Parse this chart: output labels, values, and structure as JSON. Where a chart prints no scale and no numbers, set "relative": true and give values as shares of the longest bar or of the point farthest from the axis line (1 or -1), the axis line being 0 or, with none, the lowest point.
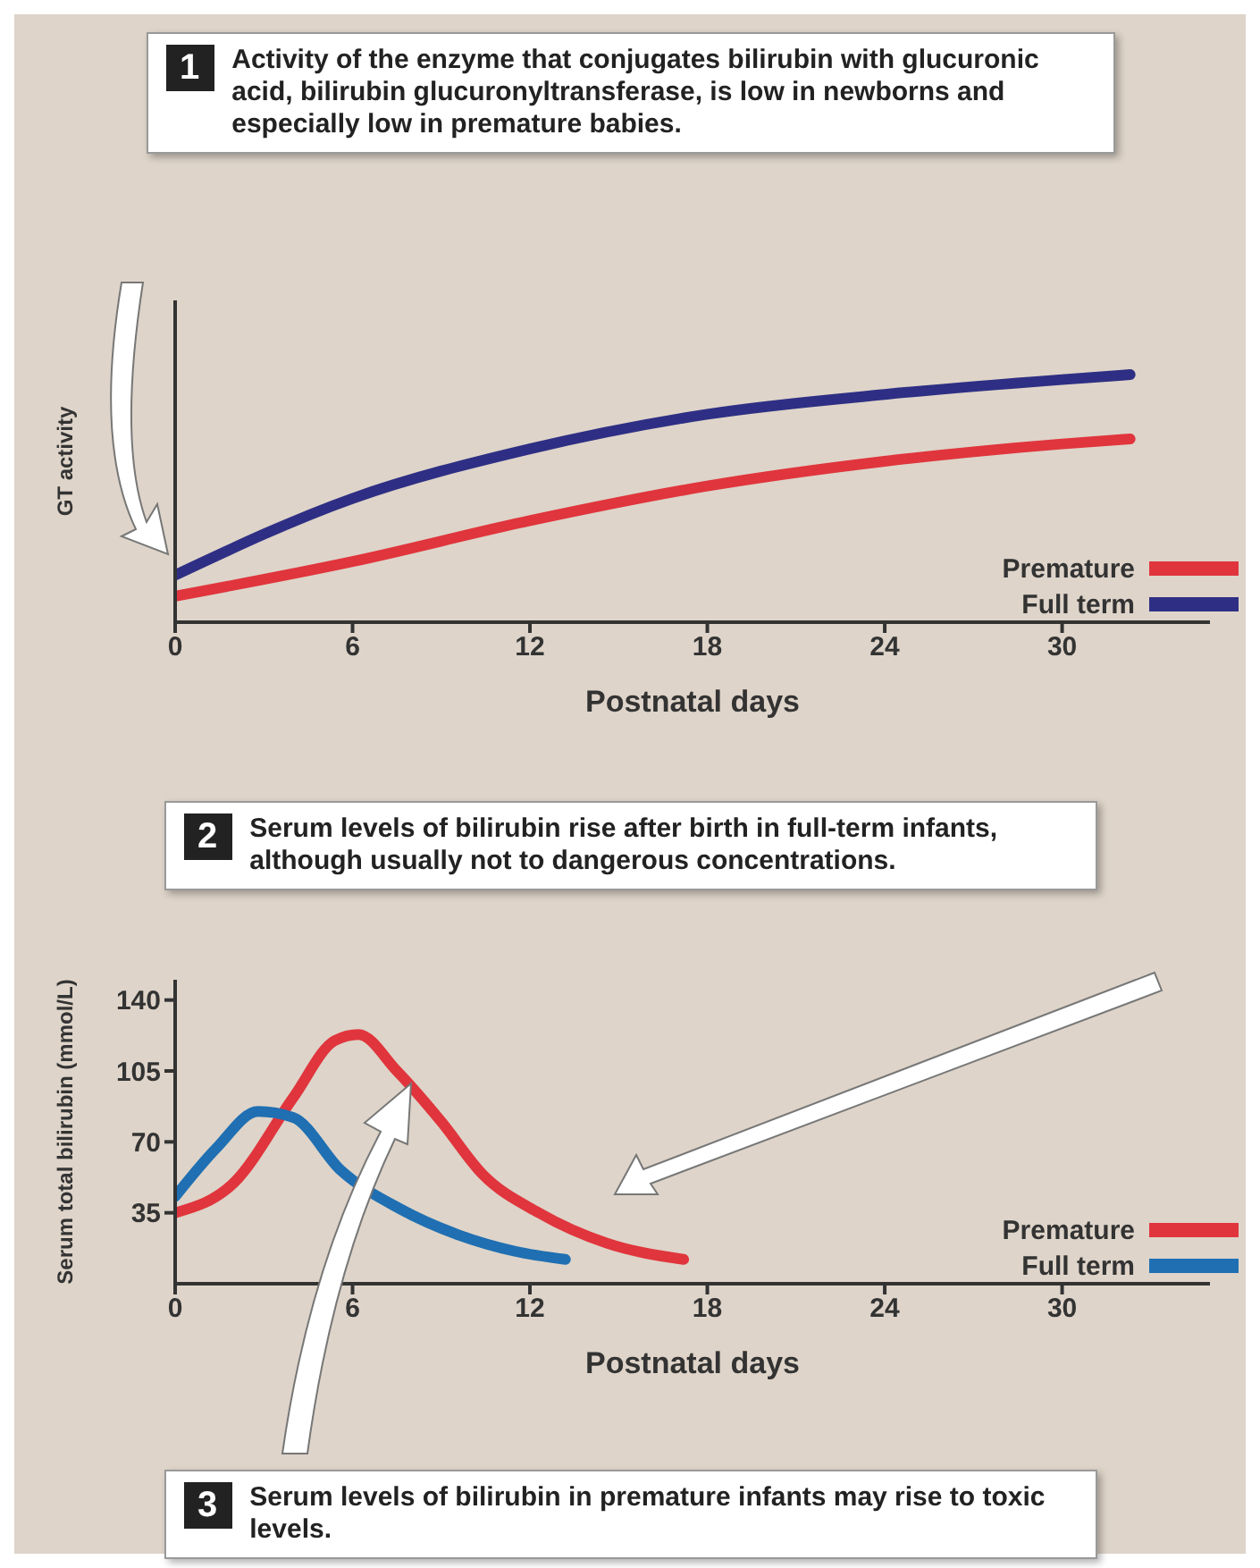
{
  "chart_data": [
    {
      "type": "line",
      "relative": true,
      "xlabel": "Postnatal days",
      "ylabel": "GT activity",
      "x": [
        0,
        6,
        12,
        18,
        24,
        30,
        32.3
      ],
      "xlim": [
        0,
        35
      ],
      "xticks": [
        0,
        6,
        12,
        18,
        24,
        30
      ],
      "legend": "bottom right",
      "marker": "none",
      "line_style": "solid",
      "series": [
        {
          "name": "Premature",
          "color": "#e0353d",
          "values": [
            0.105,
            0.245,
            0.41,
            0.55,
            0.65,
            0.72,
            0.74
          ]
        },
        {
          "name": "Full term",
          "color": "#2e2f84",
          "values": [
            0.19,
            0.5,
            0.7,
            0.84,
            0.92,
            0.98,
            1
          ]
        }
      ],
      "annotations": [
        "1",
        "Activity of the enzyme that conjugates bilirubin with glucuronic acid, bilirubin glucuronyltransferase, is low in newborns and especially low in premature babies."
      ]
    },
    {
      "type": "line",
      "xlabel": "Postnatal days",
      "ylabel": "Serum total bilirubin (mmol/L)",
      "xlim": [
        0,
        35
      ],
      "xticks": [
        0,
        6,
        12,
        18,
        24,
        30
      ],
      "ylim": [
        0,
        150
      ],
      "yticks": [
        35,
        70,
        105,
        140
      ],
      "legend": "bottom right",
      "marker": "none",
      "line_style": "solid",
      "series": [
        {
          "name": "Premature",
          "color": "#e0353d",
          "x": [
            0,
            2,
            4,
            5.4,
            6.2,
            7.5,
            9,
            10.4,
            12.3,
            14.6,
            17.2
          ],
          "values": [
            35,
            50,
            92,
            120,
            123,
            105,
            80,
            54,
            35,
            20,
            12
          ]
        },
        {
          "name": "Full term",
          "color": "#1f6fb2",
          "x": [
            0,
            1.4,
            2.8,
            4,
            5.6,
            7.6,
            9.6,
            11.5,
            13.2
          ],
          "values": [
            43,
            67,
            85,
            82,
            56,
            37,
            24,
            16,
            12
          ]
        }
      ],
      "annotations": [
        "2",
        "Serum levels of bilirubin rise after birth in full-term infants, although usually not to dangerous concentrations.",
        "3",
        "Serum levels of bilirubin in premature infants may rise to toxic levels."
      ]
    }
  ]
}
